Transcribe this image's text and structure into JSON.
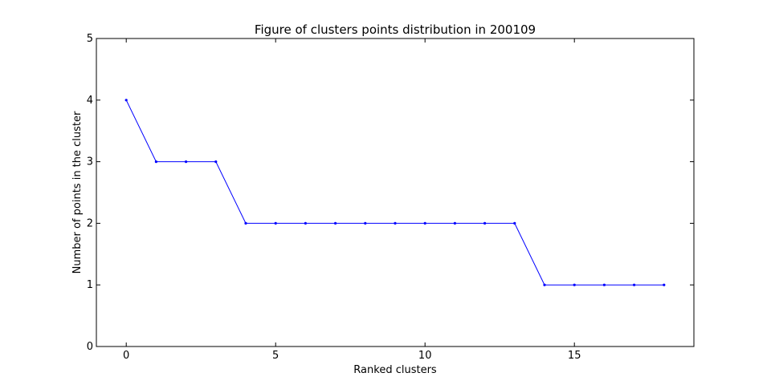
{
  "chart_data": {
    "type": "line",
    "title": "Figure of clusters points distribution in 200109",
    "xlabel": "Ranked clusters",
    "ylabel": "Number of points in the cluster",
    "xlim": [
      -1,
      19
    ],
    "ylim": [
      0,
      5
    ],
    "xticks": [
      0,
      5,
      10,
      15
    ],
    "yticks": [
      0,
      1,
      2,
      3,
      4,
      5
    ],
    "grid": false,
    "series": [
      {
        "color": "#0000ff",
        "x": [
          0,
          1,
          2,
          3,
          4,
          5,
          6,
          7,
          8,
          9,
          10,
          11,
          12,
          13,
          14,
          15,
          16,
          17,
          18
        ],
        "y": [
          4,
          3,
          3,
          3,
          2,
          2,
          2,
          2,
          2,
          2,
          2,
          2,
          2,
          2,
          1,
          1,
          1,
          1,
          1
        ]
      }
    ]
  }
}
